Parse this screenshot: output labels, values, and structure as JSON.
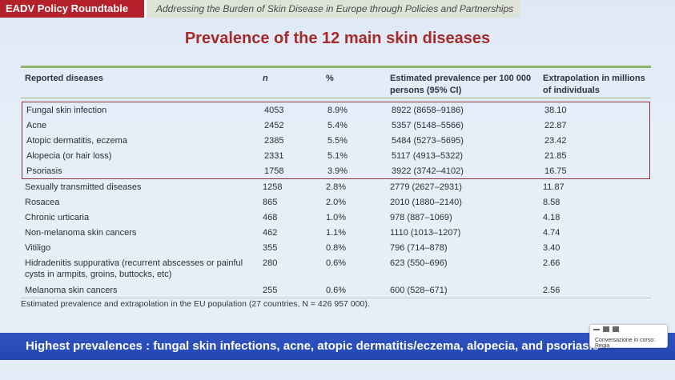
{
  "header": {
    "brand": "EADV Policy Roundtable",
    "subtitle": "Addressing the Burden of Skin Disease in Europe through Policies and Partnerships"
  },
  "title": "Prevalence of the 12 main skin diseases",
  "table": {
    "headers": [
      "Reported diseases",
      "n",
      "%",
      "Estimated prevalence per 100 000 persons (95% CI)",
      "Extrapolation in millions of individuals"
    ],
    "highlighted_rows": [
      [
        "Fungal skin infection",
        "4053",
        "8.9%",
        "8922 (8658–9186)",
        "38.10"
      ],
      [
        "Acne",
        "2452",
        "5.4%",
        "5357 (5148–5566)",
        "22.87"
      ],
      [
        "Atopic dermatitis, eczema",
        "2385",
        "5.5%",
        "5484 (5273–5695)",
        "23.42"
      ],
      [
        "Alopecia (or hair loss)",
        "2331",
        "5.1%",
        "5117 (4913–5322)",
        "21.85"
      ],
      [
        "Psoriasis",
        "1758",
        "3.9%",
        "3922 (3742–4102)",
        "16.75"
      ]
    ],
    "rows": [
      [
        "Sexually transmitted diseases",
        "1258",
        "2.8%",
        "2779 (2627–2931)",
        "11.87"
      ],
      [
        "Rosacea",
        "865",
        "2.0%",
        "2010 (1880–2140)",
        "8.58"
      ],
      [
        "Chronic urticaria",
        "468",
        "1.0%",
        "978 (887–1069)",
        "4.18"
      ],
      [
        "Non-melanoma skin cancers",
        "462",
        "1.1%",
        "1110 (1013–1207)",
        "4.74"
      ],
      [
        "Vitiligo",
        "355",
        "0.8%",
        "796 (714–878)",
        "3.40"
      ],
      [
        "Hidradenitis suppurativa (recurrent abscesses or painful cysts in armpits, groins, buttocks, etc)",
        "280",
        "0.6%",
        "623 (550–696)",
        "2.66"
      ],
      [
        "Melanoma skin cancers",
        "255",
        "0.6%",
        "600 (528–671)",
        "2.56"
      ]
    ]
  },
  "footnote": "Estimated prevalence and extrapolation in the EU population (27 countries, N = 426 957 000).",
  "banner": "Highest prevalences : fungal skin infections, acne, atopic dermatitis/eczema, alopecia, and psoriasis",
  "popup": {
    "text": "Conversazione in corso: Regia"
  },
  "colors": {
    "brand": "#b5212b",
    "title": "#a52a2a",
    "banner": "#2347b4",
    "rule": "#8fb36a",
    "highlight_border": "#8a2f3c"
  }
}
